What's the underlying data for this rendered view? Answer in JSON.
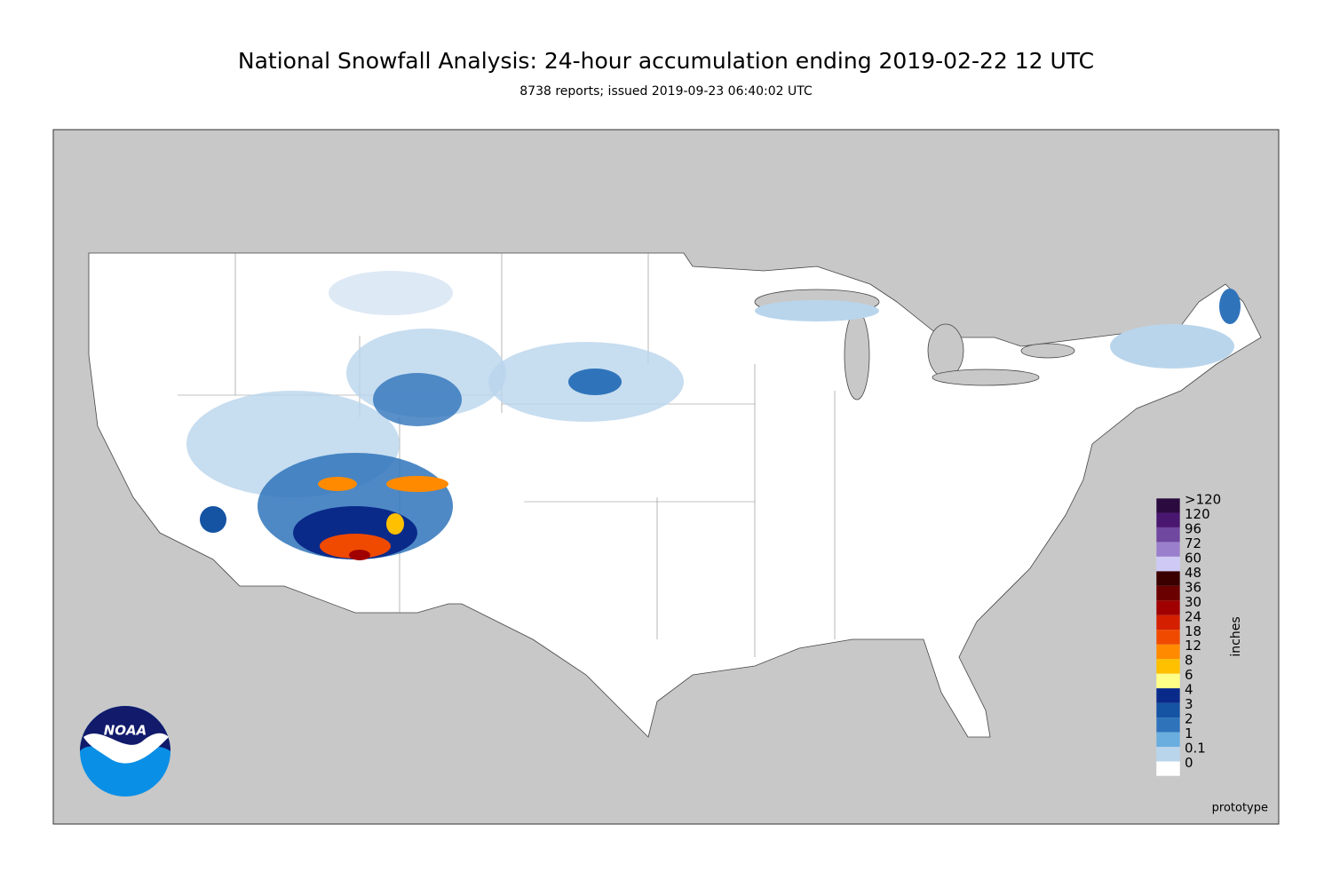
{
  "title": "National Snowfall Analysis: 24-hour accumulation ending 2019-02-22 12 UTC",
  "subtitle": "8738 reports; issued 2019-09-23 06:40:02 UTC",
  "legend": {
    "unit": "inches",
    "labels": [
      ">120",
      "120",
      "96",
      "72",
      "60",
      "48",
      "36",
      "30",
      "24",
      "18",
      "12",
      "8",
      "6",
      "4",
      "3",
      "2",
      "1",
      "0.1",
      "0"
    ],
    "colors": [
      "#2b0b3f",
      "#4a1770",
      "#7048a0",
      "#9a7fcc",
      "#cfcaf5",
      "#3a0000",
      "#6b0000",
      "#a00000",
      "#d42000",
      "#f04a00",
      "#ff8a00",
      "#ffc000",
      "#ffff88",
      "#0a2a8a",
      "#1553a3",
      "#2f74bb",
      "#6aaee0",
      "#b9d5ec",
      "#ffffff"
    ]
  },
  "logo_text": "NOAA",
  "footer_note": "prototype"
}
